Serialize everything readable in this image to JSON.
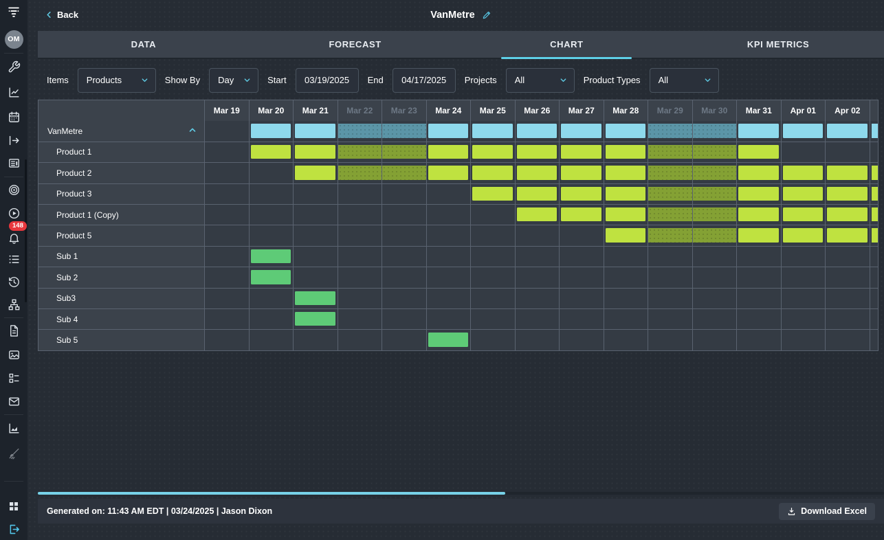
{
  "topbar": {
    "back_label": "Back",
    "title": "VanMetre"
  },
  "tabs": [
    {
      "label": "DATA",
      "active": false
    },
    {
      "label": "FORECAST",
      "active": false
    },
    {
      "label": "CHART",
      "active": true
    },
    {
      "label": "KPI METRICS",
      "active": false
    }
  ],
  "filters": {
    "items": {
      "label": "Items",
      "value": "Products"
    },
    "show_by": {
      "label": "Show By",
      "value": "Day"
    },
    "start": {
      "label": "Start",
      "value": "03/19/2025"
    },
    "end": {
      "label": "End",
      "value": "04/17/2025"
    },
    "projects": {
      "label": "Projects",
      "value": "All"
    },
    "product_types": {
      "label": "Product Types",
      "value": "All"
    }
  },
  "chart_data": {
    "type": "gantt",
    "show_by": "Day",
    "date_range": [
      "03/19/2025",
      "04/17/2025"
    ],
    "days": [
      {
        "label": "Mar 19",
        "weekend": false
      },
      {
        "label": "Mar 20",
        "weekend": false
      },
      {
        "label": "Mar 21",
        "weekend": false
      },
      {
        "label": "Mar 22",
        "weekend": true
      },
      {
        "label": "Mar 23",
        "weekend": true
      },
      {
        "label": "Mar 24",
        "weekend": false
      },
      {
        "label": "Mar 25",
        "weekend": false
      },
      {
        "label": "Mar 26",
        "weekend": false
      },
      {
        "label": "Mar 27",
        "weekend": false
      },
      {
        "label": "Mar 28",
        "weekend": false
      },
      {
        "label": "Mar 29",
        "weekend": true
      },
      {
        "label": "Mar 30",
        "weekend": true
      },
      {
        "label": "Mar 31",
        "weekend": false
      },
      {
        "label": "Apr 01",
        "weekend": false
      },
      {
        "label": "Apr 02",
        "weekend": false
      }
    ],
    "rows": [
      {
        "label": "VanMetre",
        "level": 0,
        "collapsible": true,
        "color": "cyan",
        "start": 1,
        "end": 15,
        "start_day": "Mar 20",
        "end_day": "beyond Apr 02"
      },
      {
        "label": "Product 1",
        "level": 1,
        "collapsible": false,
        "color": "lime",
        "start": 1,
        "end": 12,
        "start_day": "Mar 20",
        "end_day": "Mar 31"
      },
      {
        "label": "Product 2",
        "level": 1,
        "collapsible": false,
        "color": "lime",
        "start": 2,
        "end": 15,
        "start_day": "Mar 21",
        "end_day": "beyond Apr 02"
      },
      {
        "label": "Product 3",
        "level": 1,
        "collapsible": false,
        "color": "lime",
        "start": 6,
        "end": 15,
        "start_day": "Mar 25",
        "end_day": "beyond Apr 02"
      },
      {
        "label": "Product 1 (Copy)",
        "level": 1,
        "collapsible": false,
        "color": "lime",
        "start": 7,
        "end": 15,
        "start_day": "Mar 26",
        "end_day": "beyond Apr 02"
      },
      {
        "label": "Product 5",
        "level": 1,
        "collapsible": false,
        "color": "lime",
        "start": 9,
        "end": 15,
        "start_day": "Mar 28",
        "end_day": "beyond Apr 02"
      },
      {
        "label": "Sub 1",
        "level": 1,
        "collapsible": false,
        "color": "green",
        "start": 1,
        "end": 1,
        "start_day": "Mar 20",
        "end_day": "Mar 20"
      },
      {
        "label": "Sub 2",
        "level": 1,
        "collapsible": false,
        "color": "green",
        "start": 1,
        "end": 1,
        "start_day": "Mar 20",
        "end_day": "Mar 20"
      },
      {
        "label": "Sub3",
        "level": 1,
        "collapsible": false,
        "color": "green",
        "start": 2,
        "end": 2,
        "start_day": "Mar 21",
        "end_day": "Mar 21"
      },
      {
        "label": "Sub 4",
        "level": 1,
        "collapsible": false,
        "color": "green",
        "start": 2,
        "end": 2,
        "start_day": "Mar 21",
        "end_day": "Mar 21"
      },
      {
        "label": "Sub 5",
        "level": 1,
        "collapsible": false,
        "color": "green",
        "start": 5,
        "end": 5,
        "start_day": "Mar 24",
        "end_day": "Mar 24"
      }
    ],
    "colors": {
      "cyan": "#8ed9ec",
      "cyan_weekend": "#5b95a7",
      "lime": "#bfe240",
      "lime_weekend": "#84a134",
      "green": "#5ecb77",
      "accent": "#5ed0e8"
    },
    "legend_position": "none",
    "grid": true
  },
  "sidebar": {
    "avatar": "OM",
    "notification_count": "148",
    "icons": [
      "app-logo-icon",
      "avatar",
      "wrench-icon",
      "chart-corner-icon",
      "calendar-icon",
      "export-arrow-icon",
      "news-icon",
      "target-icon",
      "play-circle-icon",
      "bell-icon",
      "list-icon",
      "history-icon",
      "sitemap-icon",
      "file-icon",
      "image-icon",
      "tasks-icon",
      "mail-icon",
      "area-chart-icon",
      "brush-icon",
      "dashboard-grid-icon",
      "logout-icon"
    ]
  },
  "footer": {
    "generated": "Generated on: 11:43 AM EDT | 03/24/2025 | Jason Dixon",
    "download_label": "Download Excel"
  }
}
